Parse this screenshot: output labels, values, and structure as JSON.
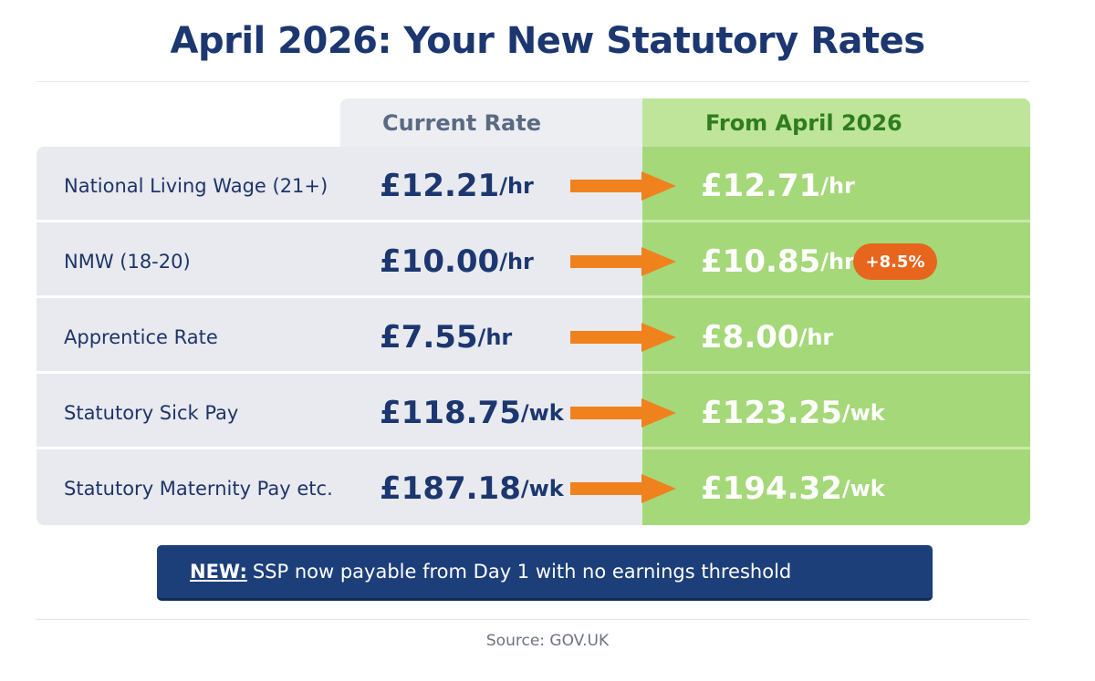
{
  "title": "April 2026: Your New Statutory Rates",
  "columns": {
    "current": "Current Rate",
    "new": "From April 2026"
  },
  "rows": [
    {
      "label": "National Living Wage (21+)",
      "current_value": "£12.21",
      "current_unit": "/hr",
      "new_value": "£12.71",
      "new_unit": "/hr"
    },
    {
      "label": "NMW (18-20)",
      "current_value": "£10.00",
      "current_unit": "/hr",
      "new_value": "£10.85",
      "new_unit": "/hr",
      "badge": "+8.5%"
    },
    {
      "label": "Apprentice Rate",
      "current_value": "£7.55",
      "current_unit": "/hr",
      "new_value": "£8.00",
      "new_unit": "/hr"
    },
    {
      "label": "Statutory Sick Pay",
      "current_value": "£118.75",
      "current_unit": "/wk",
      "new_value": "£123.25",
      "new_unit": "/wk"
    },
    {
      "label": "Statutory Maternity Pay etc.",
      "current_value": "£187.18",
      "current_unit": "/wk",
      "new_value": "£194.32",
      "new_unit": "/wk"
    }
  ],
  "banner": {
    "prefix": "NEW:",
    "text": "SSP now payable from Day 1 with no earnings threshold"
  },
  "source": "Source:  GOV.UK",
  "colors": {
    "navy": "#1c3770",
    "green_header": "#bfe59a",
    "green_body": "#a5d879",
    "arrow_orange": "#f0821e",
    "badge_orange": "#e8651d"
  }
}
